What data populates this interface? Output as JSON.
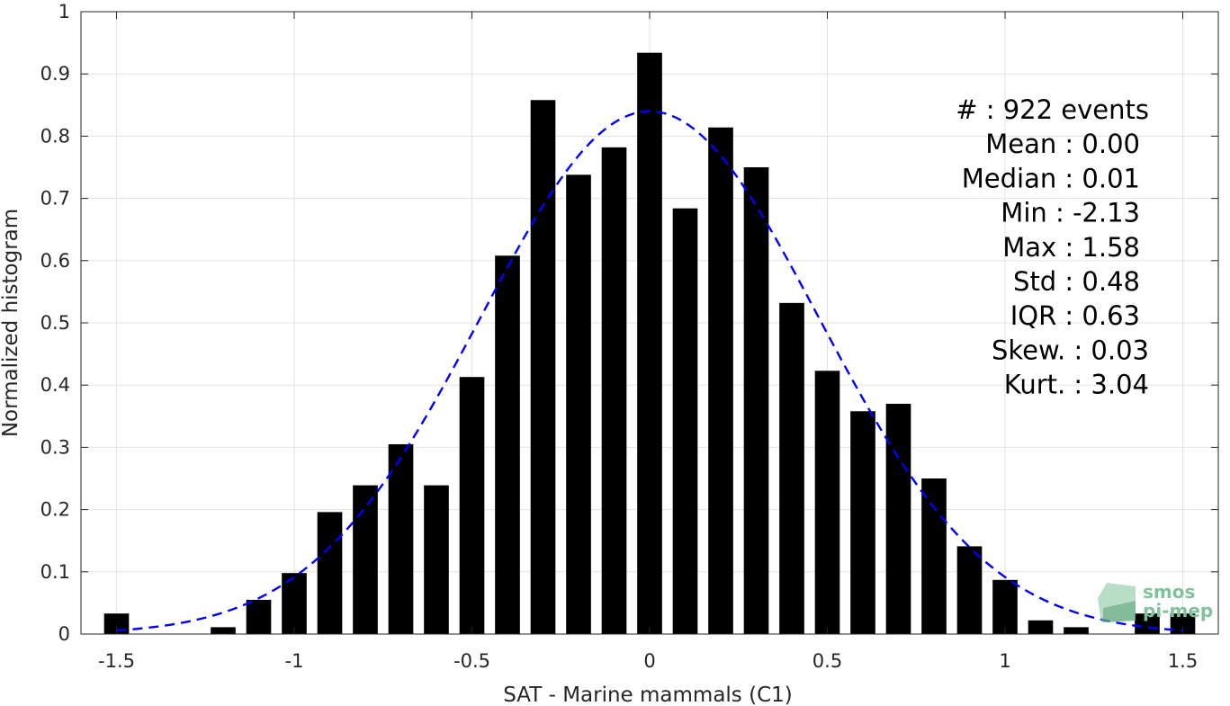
{
  "chart_data": {
    "type": "bar",
    "xlabel": "SAT - Marine mammals (C1)",
    "ylabel": "Normalized histogram",
    "xlim": [
      -1.6,
      1.6
    ],
    "ylim": [
      0,
      1
    ],
    "xticks": [
      -1.5,
      -1,
      -0.5,
      0,
      0.5,
      1,
      1.5
    ],
    "xtick_labels": [
      "-1.5",
      "-1",
      "-0.5",
      "0",
      "0.5",
      "1",
      "1.5"
    ],
    "yticks": [
      0,
      0.1,
      0.2,
      0.3,
      0.4,
      0.5,
      0.6,
      0.7,
      0.8,
      0.9,
      1
    ],
    "ytick_labels": [
      "0",
      "0.1",
      "0.2",
      "0.3",
      "0.4",
      "0.5",
      "0.6",
      "0.7",
      "0.8",
      "0.9",
      "1"
    ],
    "grid": true,
    "bar_color": "#000000",
    "bin_centers": [
      -1.5,
      -1.4,
      -1.3,
      -1.2,
      -1.1,
      -1.0,
      -0.9,
      -0.8,
      -0.7,
      -0.6,
      -0.5,
      -0.4,
      -0.3,
      -0.2,
      -0.1,
      0.0,
      0.1,
      0.2,
      0.3,
      0.4,
      0.5,
      0.6,
      0.7,
      0.8,
      0.9,
      1.0,
      1.1,
      1.2,
      1.3,
      1.4,
      1.5
    ],
    "values": [
      0.033,
      0,
      0,
      0.011,
      0.055,
      0.098,
      0.196,
      0.239,
      0.305,
      0.239,
      0.413,
      0.608,
      0.858,
      0.738,
      0.782,
      0.934,
      0.684,
      0.814,
      0.75,
      0.532,
      0.423,
      0.358,
      0.37,
      0.25,
      0.141,
      0.087,
      0.022,
      0.011,
      0,
      0.033,
      0.033
    ],
    "fit_curve": {
      "style": "dashed",
      "color": "#0000ff",
      "mean": 0.0,
      "std": 0.475,
      "peak": 0.84,
      "x_range": [
        -1.5,
        1.5
      ]
    },
    "stats_lines": [
      "#  : 922 events",
      "Mean : 0.00",
      "Median : 0.01",
      "Min : -2.13",
      "Max : 1.58",
      "Std : 0.48",
      "IQR : 0.63",
      "Skew. : 0.03",
      "Kurt. : 3.04"
    ]
  },
  "logo": {
    "line1": "smos",
    "line2": "pi-mep",
    "color": "#7fc29b"
  }
}
